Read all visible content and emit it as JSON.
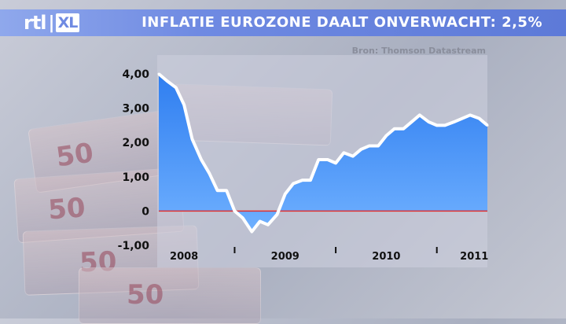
{
  "header": {
    "logo_rtl": "rtl",
    "logo_bars": "|",
    "logo_xl": "XL",
    "title": "INFLATIE EUROZONE DAALT ONVERWACHT: 2,5%"
  },
  "colors": {
    "header_bar": "#6f8ae2",
    "area_fill": "#3f8cf2",
    "line": "#ffffff",
    "zero_line": "#e03030"
  },
  "chart_data": {
    "type": "area",
    "source": "Bron: Thomson Datastream",
    "ylim": [
      -1.0,
      4.0
    ],
    "yticks": [
      {
        "value": 4,
        "label": "4,00"
      },
      {
        "value": 3,
        "label": "3,00"
      },
      {
        "value": 2,
        "label": "2,00"
      },
      {
        "value": 1,
        "label": "1,00"
      },
      {
        "value": 0,
        "label": "0"
      },
      {
        "value": -1,
        "label": "-1,00"
      }
    ],
    "xticks": [
      {
        "x": 2008.25,
        "label": "2008"
      },
      {
        "x": 2009.25,
        "label": "2009"
      },
      {
        "x": 2010.25,
        "label": "2010"
      },
      {
        "x": 2011.12,
        "label": "2011"
      }
    ],
    "xlim": [
      2008.0,
      2011.25
    ],
    "series": [
      {
        "x": [
          2008.0,
          2008.08,
          2008.17,
          2008.25,
          2008.33,
          2008.42,
          2008.5,
          2008.58,
          2008.67,
          2008.75,
          2008.83,
          2008.92,
          2009.0,
          2009.08,
          2009.17,
          2009.25,
          2009.33,
          2009.42,
          2009.5,
          2009.58,
          2009.67,
          2009.75,
          2009.83,
          2009.92,
          2010.0,
          2010.08,
          2010.17,
          2010.25,
          2010.33,
          2010.42,
          2010.5,
          2010.58,
          2010.67,
          2010.75,
          2010.83,
          2010.92,
          2011.0,
          2011.08,
          2011.17,
          2011.25
        ],
        "values": [
          4.0,
          3.8,
          3.6,
          3.1,
          2.1,
          1.5,
          1.1,
          0.6,
          0.6,
          -0.0,
          -0.2,
          -0.6,
          -0.3,
          -0.4,
          -0.1,
          0.5,
          0.8,
          0.9,
          0.9,
          1.5,
          1.5,
          1.4,
          1.7,
          1.6,
          1.8,
          1.9,
          1.9,
          2.2,
          2.4,
          2.4,
          2.6,
          2.8,
          2.6,
          2.5,
          2.5,
          2.6,
          2.7,
          2.8,
          2.7,
          2.5
        ]
      }
    ]
  }
}
